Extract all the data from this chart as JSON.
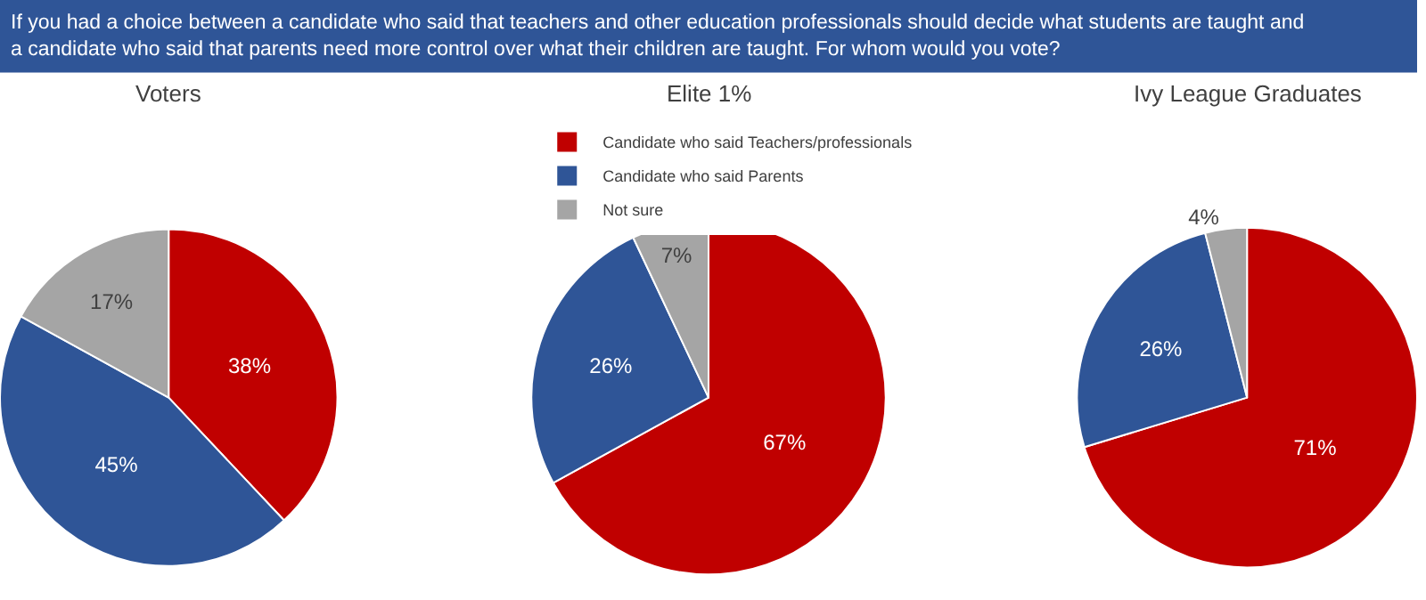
{
  "chart_data": [
    {
      "type": "pie",
      "title": "Voters",
      "categories": [
        "Candidate who said Teachers/professionals",
        "Candidate who said Parents",
        "Not sure"
      ],
      "values": [
        38,
        45,
        17
      ],
      "colors": [
        "#c00000",
        "#2f5597",
        "#a5a5a5"
      ],
      "value_labels": [
        "38%",
        "45%",
        "17%"
      ],
      "legend": "top"
    },
    {
      "type": "pie",
      "title": "Elite 1%",
      "categories": [
        null,
        null,
        null
      ],
      "values": [
        67,
        26,
        7
      ],
      "colors": [
        "#c00000",
        "#2f5597",
        "#a5a5a5"
      ],
      "value_labels": [
        "67%",
        "26%",
        "7%"
      ]
    },
    {
      "type": "pie",
      "title": "Ivy League Graduates",
      "categories": [
        null,
        null,
        null
      ],
      "values": [
        71,
        26,
        4
      ],
      "colors": [
        "#c00000",
        "#2f5597",
        "#a5a5a5"
      ],
      "value_labels": [
        "71%",
        "26%",
        "4%"
      ]
    },
    {
      "type": "other",
      "title": "If you had a choice between a candidate who said that teachers and other education professionals should decide what students are taught and a candidate who said that parents need more control over what their children are taught. For whom would you vote?"
    }
  ]
}
